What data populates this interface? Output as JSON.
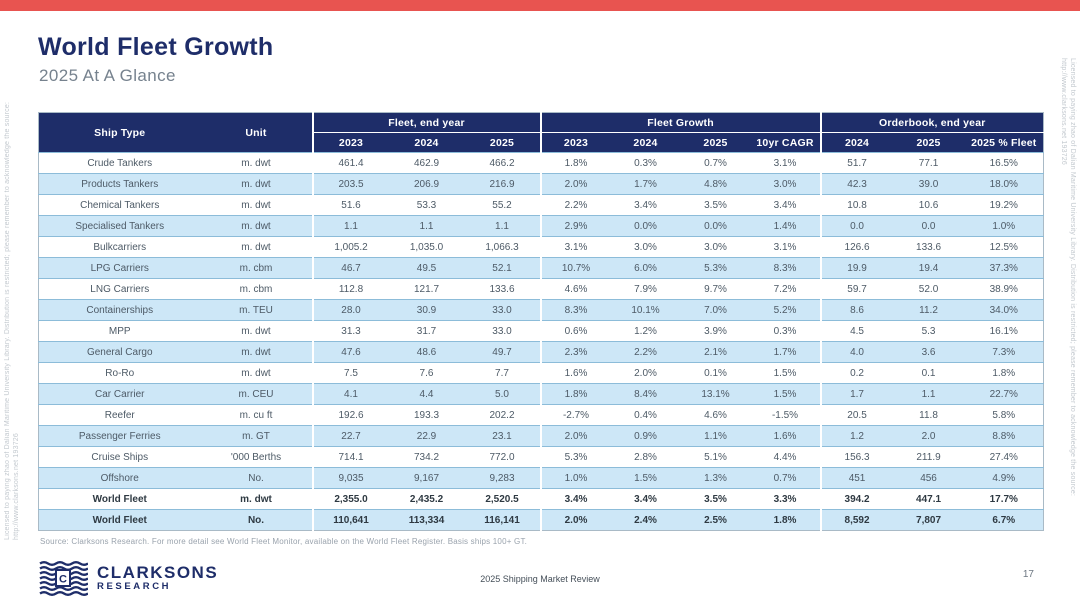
{
  "page": {
    "title": "World Fleet Growth",
    "subtitle": "2025 At A Glance",
    "accent_red": "#e85450",
    "navy": "#1e2d69",
    "row_alt_blue": "#cde7f7",
    "page_number": "17",
    "footer_center": "2025 Shipping Market Review",
    "source_note": "Source: Clarksons Research. For more detail see World Fleet Monitor, available on the World Fleet Register. Basis ships 100+ GT.",
    "watermark": "Licensed to paying zhao of Dalian Maritime University Library. Distribution is restricted; please remember to acknowledge the source: http://www.clarksons.net 193726"
  },
  "logo": {
    "monogram": "C",
    "name": "CLARKSONS",
    "division": "RESEARCH"
  },
  "table": {
    "headers": {
      "ship_type": "Ship Type",
      "unit": "Unit"
    },
    "groups": [
      {
        "label": "Fleet, end year",
        "cols": [
          "2023",
          "2024",
          "2025"
        ]
      },
      {
        "label": "Fleet Growth",
        "cols": [
          "2023",
          "2024",
          "2025",
          "10yr CAGR"
        ]
      },
      {
        "label": "Orderbook, end year",
        "cols": [
          "2024",
          "2025",
          "2025 % Fleet"
        ]
      }
    ],
    "rows": [
      {
        "ship_type": "Crude Tankers",
        "unit": "m. dwt",
        "bold": false,
        "values": [
          "461.4",
          "462.9",
          "466.2",
          "1.8%",
          "0.3%",
          "0.7%",
          "3.1%",
          "51.7",
          "77.1",
          "16.5%"
        ]
      },
      {
        "ship_type": "Products Tankers",
        "unit": "m. dwt",
        "bold": false,
        "values": [
          "203.5",
          "206.9",
          "216.9",
          "2.0%",
          "1.7%",
          "4.8%",
          "3.0%",
          "42.3",
          "39.0",
          "18.0%"
        ]
      },
      {
        "ship_type": "Chemical Tankers",
        "unit": "m. dwt",
        "bold": false,
        "values": [
          "51.6",
          "53.3",
          "55.2",
          "2.2%",
          "3.4%",
          "3.5%",
          "3.4%",
          "10.8",
          "10.6",
          "19.2%"
        ]
      },
      {
        "ship_type": "Specialised Tankers",
        "unit": "m. dwt",
        "bold": false,
        "values": [
          "1.1",
          "1.1",
          "1.1",
          "2.9%",
          "0.0%",
          "0.0%",
          "1.4%",
          "0.0",
          "0.0",
          "1.0%"
        ]
      },
      {
        "ship_type": "Bulkcarriers",
        "unit": "m. dwt",
        "bold": false,
        "values": [
          "1,005.2",
          "1,035.0",
          "1,066.3",
          "3.1%",
          "3.0%",
          "3.0%",
          "3.1%",
          "126.6",
          "133.6",
          "12.5%"
        ]
      },
      {
        "ship_type": "LPG Carriers",
        "unit": "m. cbm",
        "bold": false,
        "values": [
          "46.7",
          "49.5",
          "52.1",
          "10.7%",
          "6.0%",
          "5.3%",
          "8.3%",
          "19.9",
          "19.4",
          "37.3%"
        ]
      },
      {
        "ship_type": "LNG Carriers",
        "unit": "m. cbm",
        "bold": false,
        "values": [
          "112.8",
          "121.7",
          "133.6",
          "4.6%",
          "7.9%",
          "9.7%",
          "7.2%",
          "59.7",
          "52.0",
          "38.9%"
        ]
      },
      {
        "ship_type": "Containerships",
        "unit": "m. TEU",
        "bold": false,
        "values": [
          "28.0",
          "30.9",
          "33.0",
          "8.3%",
          "10.1%",
          "7.0%",
          "5.2%",
          "8.6",
          "11.2",
          "34.0%"
        ]
      },
      {
        "ship_type": "MPP",
        "unit": "m. dwt",
        "bold": false,
        "values": [
          "31.3",
          "31.7",
          "33.0",
          "0.6%",
          "1.2%",
          "3.9%",
          "0.3%",
          "4.5",
          "5.3",
          "16.1%"
        ]
      },
      {
        "ship_type": "General Cargo",
        "unit": "m. dwt",
        "bold": false,
        "values": [
          "47.6",
          "48.6",
          "49.7",
          "2.3%",
          "2.2%",
          "2.1%",
          "1.7%",
          "4.0",
          "3.6",
          "7.3%"
        ]
      },
      {
        "ship_type": "Ro-Ro",
        "unit": "m. dwt",
        "bold": false,
        "values": [
          "7.5",
          "7.6",
          "7.7",
          "1.6%",
          "2.0%",
          "0.1%",
          "1.5%",
          "0.2",
          "0.1",
          "1.8%"
        ]
      },
      {
        "ship_type": "Car Carrier",
        "unit": "m. CEU",
        "bold": false,
        "values": [
          "4.1",
          "4.4",
          "5.0",
          "1.8%",
          "8.4%",
          "13.1%",
          "1.5%",
          "1.7",
          "1.1",
          "22.7%"
        ]
      },
      {
        "ship_type": "Reefer",
        "unit": "m. cu ft",
        "bold": false,
        "values": [
          "192.6",
          "193.3",
          "202.2",
          "-2.7%",
          "0.4%",
          "4.6%",
          "-1.5%",
          "20.5",
          "11.8",
          "5.8%"
        ]
      },
      {
        "ship_type": "Passenger Ferries",
        "unit": "m. GT",
        "bold": false,
        "values": [
          "22.7",
          "22.9",
          "23.1",
          "2.0%",
          "0.9%",
          "1.1%",
          "1.6%",
          "1.2",
          "2.0",
          "8.8%"
        ]
      },
      {
        "ship_type": "Cruise Ships",
        "unit": "'000 Berths",
        "bold": false,
        "values": [
          "714.1",
          "734.2",
          "772.0",
          "5.3%",
          "2.8%",
          "5.1%",
          "4.4%",
          "156.3",
          "211.9",
          "27.4%"
        ]
      },
      {
        "ship_type": "Offshore",
        "unit": "No.",
        "bold": false,
        "values": [
          "9,035",
          "9,167",
          "9,283",
          "1.0%",
          "1.5%",
          "1.3%",
          "0.7%",
          "451",
          "456",
          "4.9%"
        ]
      },
      {
        "ship_type": "World Fleet",
        "unit": "m. dwt",
        "bold": true,
        "values": [
          "2,355.0",
          "2,435.2",
          "2,520.5",
          "3.4%",
          "3.4%",
          "3.5%",
          "3.3%",
          "394.2",
          "447.1",
          "17.7%"
        ]
      },
      {
        "ship_type": "World Fleet",
        "unit": "No.",
        "bold": true,
        "values": [
          "110,641",
          "113,334",
          "116,141",
          "2.0%",
          "2.4%",
          "2.5%",
          "1.8%",
          "8,592",
          "7,807",
          "6.7%"
        ]
      }
    ]
  }
}
